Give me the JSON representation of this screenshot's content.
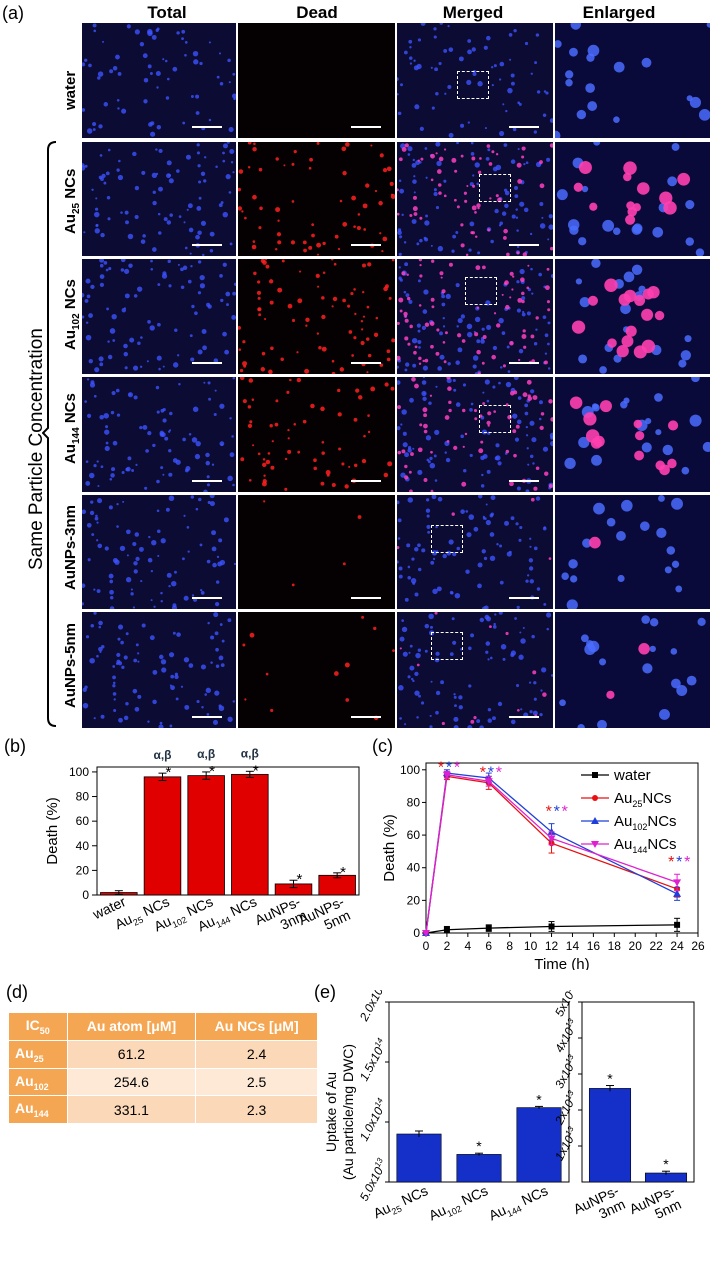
{
  "panel_a": {
    "letter": "(a)",
    "columns": [
      "Total",
      "Dead",
      "Merged",
      "Enlarged"
    ],
    "rows": [
      {
        "label": "water",
        "dead_level": 0
      },
      {
        "label_main": "Au",
        "label_sub": "25",
        "label_tail": " NCs",
        "dead_level": 0.8
      },
      {
        "label_main": "Au",
        "label_sub": "102",
        "label_tail": " NCs",
        "dead_level": 1.0
      },
      {
        "label_main": "Au",
        "label_sub": "144",
        "label_tail": " NCs",
        "dead_level": 0.8
      },
      {
        "label": "AuNPs-3nm",
        "dead_level": 0.05
      },
      {
        "label": "AuNPs-5nm",
        "dead_level": 0.15
      }
    ],
    "group_label": "Same Particle Concentration"
  },
  "panel_b": {
    "letter": "(b)",
    "chart_data": {
      "type": "bar",
      "categories": [
        "water",
        "Au25 NCs",
        "Au102 NCs",
        "Au144 NCs",
        "AuNPs-3nm",
        "AuNPs-5nm"
      ],
      "category_labels": [
        {
          "main": "water"
        },
        {
          "main": "Au",
          "sub": "25",
          "tail": " NCs"
        },
        {
          "main": "Au",
          "sub": "102",
          "tail": " NCs"
        },
        {
          "main": "Au",
          "sub": "144",
          "tail": " NCs"
        },
        {
          "main": "AuNPs-",
          "line2": "3nm"
        },
        {
          "main": "AuNPs-",
          "line2": "5nm"
        }
      ],
      "values": [
        2,
        96,
        97,
        98,
        9,
        16
      ],
      "errors": [
        1.5,
        3,
        3,
        2.5,
        3,
        2
      ],
      "significance": [
        "",
        "*",
        "*",
        "*",
        "*",
        "*"
      ],
      "top_marks": [
        "",
        "α,β",
        "α,β",
        "α,β",
        "",
        ""
      ],
      "ylabel": "Death (%)",
      "ylim": [
        0,
        104
      ],
      "yticks": [
        0,
        20,
        40,
        60,
        80,
        100
      ],
      "color": "#e00000"
    }
  },
  "panel_c": {
    "letter": "(c)",
    "chart_data": {
      "type": "line",
      "xlabel": "Time (h)",
      "ylabel": "Death (%)",
      "xlim": [
        0,
        26
      ],
      "ylim": [
        0,
        100
      ],
      "xticks": [
        0,
        2,
        4,
        6,
        8,
        10,
        12,
        14,
        16,
        18,
        20,
        22,
        24,
        26
      ],
      "yticks": [
        0,
        20,
        40,
        60,
        80,
        100
      ],
      "series": [
        {
          "name": "water",
          "legend_main": "water",
          "color": "#000000",
          "marker": "square",
          "x": [
            0,
            2,
            6,
            12,
            24
          ],
          "y": [
            0,
            2,
            3,
            4,
            5
          ],
          "err": [
            0,
            2,
            2,
            3,
            4
          ]
        },
        {
          "name": "Au25NCs",
          "legend_main": "Au",
          "legend_sub": "25",
          "legend_tail": "NCs",
          "color": "#e81010",
          "marker": "circle",
          "x": [
            0,
            2,
            6,
            12,
            24
          ],
          "y": [
            0,
            96,
            92,
            55,
            27
          ],
          "err": [
            0,
            2,
            4,
            6,
            5
          ]
        },
        {
          "name": "Au102NCs",
          "legend_main": "Au",
          "legend_sub": "102",
          "legend_tail": "NCs",
          "color": "#1f3fd8",
          "marker": "triangle",
          "x": [
            0,
            2,
            6,
            12,
            24
          ],
          "y": [
            0,
            98,
            95,
            62,
            24
          ],
          "err": [
            0,
            2,
            3,
            5,
            4
          ]
        },
        {
          "name": "Au144NCs",
          "legend_main": "Au",
          "legend_sub": "144",
          "legend_tail": "NCs",
          "color": "#e020d0",
          "marker": "triangle-down",
          "x": [
            0,
            2,
            6,
            12,
            24
          ],
          "y": [
            0,
            97,
            93,
            58,
            31
          ],
          "err": [
            0,
            2,
            3,
            4,
            5
          ]
        }
      ],
      "star_groups": [
        {
          "x": 2,
          "y": 102
        },
        {
          "x": 6,
          "y": 99
        },
        {
          "x": 12.3,
          "y": 75
        },
        {
          "x": 24,
          "y": 44
        }
      ],
      "star": "*"
    }
  },
  "panel_d": {
    "letter": "(d)",
    "header": {
      "c0_main": "IC",
      "c0_sub": "50",
      "c1": "Au atom [μM]",
      "c2": "Au NCs [μM]"
    },
    "rows": [
      {
        "main": "Au",
        "sub": "25",
        "atom": "61.2",
        "ncs": "2.4"
      },
      {
        "main": "Au",
        "sub": "102",
        "atom": "254.6",
        "ncs": "2.5"
      },
      {
        "main": "Au",
        "sub": "144",
        "atom": "331.1",
        "ncs": "2.3"
      }
    ]
  },
  "panel_e": {
    "letter": "(e)",
    "chart_data": [
      {
        "type": "bar",
        "categories": [
          "Au25 NCs",
          "Au102 NCs",
          "Au144 NCs"
        ],
        "category_labels": [
          {
            "main": "Au",
            "sub": "25",
            "tail": " NCs"
          },
          {
            "main": "Au",
            "sub": "102",
            "tail": " NCs"
          },
          {
            "main": "Au",
            "sub": "144",
            "tail": " NCs"
          }
        ],
        "values": [
          90000000000000.0,
          73000000000000.0,
          112000000000000.0
        ],
        "errors": [
          2500000000000.0,
          1000000000000.0,
          1000000000000.0
        ],
        "significance": [
          "",
          "*",
          "*"
        ],
        "ylabel": "Uptake of Au",
        "ylabel2": "(Au particle/mg DWC)",
        "ylim": [
          50000000000000.0,
          200000000000000.0
        ],
        "yticks": [
          {
            "v": 50000000000000.0,
            "label": "5.0x10",
            "exp": "13"
          },
          {
            "v": 100000000000000.0,
            "label": "1.0x10",
            "exp": "14"
          },
          {
            "v": 150000000000000.0,
            "label": "1.5x10",
            "exp": "14"
          },
          {
            "v": 200000000000000.0,
            "label": "2.0x10",
            "exp": "14"
          }
        ],
        "color": "#1530c8"
      },
      {
        "type": "bar",
        "categories": [
          "AuNPs-3nm",
          "AuNPs-5nm"
        ],
        "category_labels": [
          {
            "main": "AuNPs-",
            "line2": "3nm"
          },
          {
            "main": "AuNPs-",
            "line2": "5nm"
          }
        ],
        "values": [
          26000000000000.0,
          2500000000000.0
        ],
        "errors": [
          800000000000.0,
          500000000000.0
        ],
        "significance": [
          "*",
          "*"
        ],
        "ylim": [
          0,
          50000000000000.0
        ],
        "yticks": [
          {
            "v": 10000000000000.0,
            "label": "1x10",
            "exp": "13"
          },
          {
            "v": 20000000000000.0,
            "label": "2x10",
            "exp": "13"
          },
          {
            "v": 30000000000000.0,
            "label": "3x10",
            "exp": "13"
          },
          {
            "v": 40000000000000.0,
            "label": "4x10",
            "exp": "13"
          },
          {
            "v": 50000000000000.0,
            "label": "5x10",
            "exp": "13"
          }
        ],
        "color": "#1530c8"
      }
    ]
  }
}
